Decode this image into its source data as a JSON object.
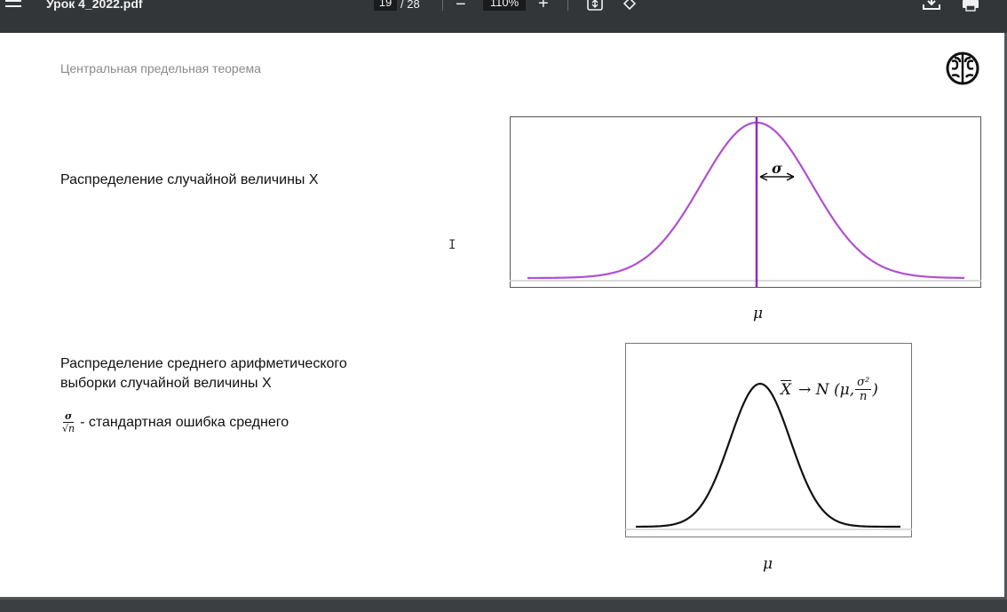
{
  "toolbar": {
    "title": "Урок 4_2022.pdf",
    "page_current": "19",
    "page_total": "/ 28",
    "zoom_out_symbol": "−",
    "zoom": "110%",
    "zoom_in_symbol": "+",
    "icons": [
      "menu-icon",
      "fit-page-icon",
      "rotate-icon",
      "download-icon",
      "print-icon"
    ]
  },
  "slide": {
    "header": "Центральная предельная теорема",
    "label1": "Распределение случайной величины X",
    "label2_line1": "Распределение среднего арифметического",
    "label2_line2": "выборки случайной величины X",
    "se_num": "σ",
    "se_den": "√n",
    "se_text": "- стандартная ошибка среднего",
    "chart1": {
      "sigma_label": "σ",
      "mu_label": "μ",
      "curve_color": "#b050d0",
      "mean_line_color": "#8a2bc9"
    },
    "chart2": {
      "mu_label": "μ",
      "curve_color": "#111111",
      "formula_lhs": "X",
      "formula_arrow": "→ N (μ,",
      "formula_num": "σ²",
      "formula_den": "n",
      "formula_close": ")"
    }
  }
}
